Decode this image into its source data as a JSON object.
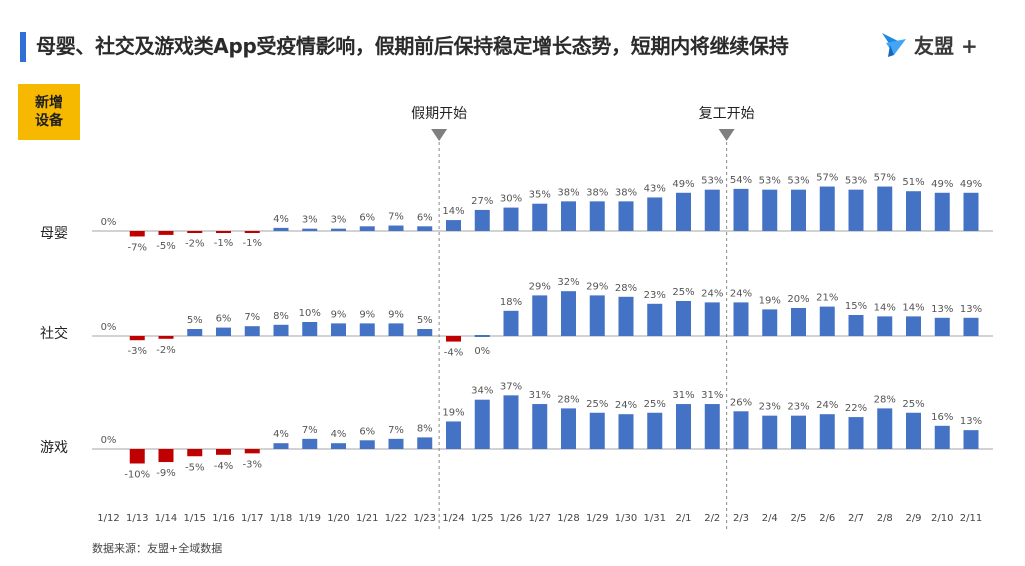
{
  "title": "母婴、社交及游戏类App受疫情影响，假期前后保持稳定增长态势，短期内将继续保持",
  "logo": {
    "text": "友盟 +"
  },
  "badge": "新增设备",
  "source": "数据来源：友盟+全域数据",
  "colors": {
    "positive": "#4472c4",
    "negative": "#c00000",
    "badge": "#f7b800",
    "accent": "#2f6fd6"
  },
  "chart_data": {
    "type": "bar",
    "categories": [
      "1/12",
      "1/13",
      "1/14",
      "1/15",
      "1/16",
      "1/17",
      "1/18",
      "1/19",
      "1/20",
      "1/21",
      "1/22",
      "1/23",
      "1/24",
      "1/25",
      "1/26",
      "1/27",
      "1/28",
      "1/29",
      "1/30",
      "1/31",
      "2/1",
      "2/2",
      "2/3",
      "2/4",
      "2/5",
      "2/6",
      "2/7",
      "2/8",
      "2/9",
      "2/10",
      "2/11"
    ],
    "unit": "%",
    "series": [
      {
        "name": "母婴",
        "values": [
          0,
          -7,
          -5,
          -2,
          -1,
          -1,
          4,
          3,
          3,
          6,
          7,
          6,
          14,
          27,
          30,
          35,
          38,
          38,
          38,
          43,
          49,
          53,
          54,
          53,
          53,
          57,
          53,
          57,
          51,
          49,
          49
        ]
      },
      {
        "name": "社交",
        "values": [
          0,
          -3,
          -2,
          5,
          6,
          7,
          8,
          10,
          9,
          9,
          9,
          5,
          -4,
          0,
          18,
          29,
          32,
          29,
          28,
          23,
          25,
          24,
          24,
          19,
          20,
          21,
          15,
          14,
          14,
          13,
          13
        ]
      },
      {
        "name": "游戏",
        "values": [
          0,
          -10,
          -9,
          -5,
          -4,
          -3,
          4,
          7,
          4,
          6,
          7,
          8,
          19,
          34,
          37,
          31,
          28,
          25,
          24,
          25,
          31,
          31,
          26,
          23,
          23,
          24,
          22,
          28,
          25,
          16,
          13
        ]
      }
    ],
    "annotations": [
      {
        "label": "假期开始",
        "between": [
          "1/23",
          "1/24"
        ]
      },
      {
        "label": "复工开始",
        "between": [
          "2/2",
          "2/3"
        ]
      }
    ]
  }
}
